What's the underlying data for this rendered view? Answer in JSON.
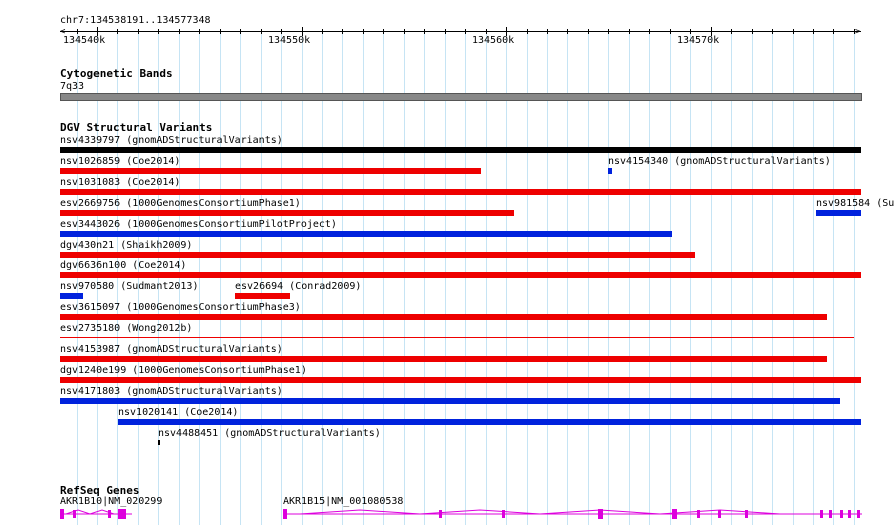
{
  "colors": {
    "grid": "#c6e4f4",
    "deletion": "#ee0000",
    "duplication": "#0022dd",
    "neutral": "#000000",
    "gene": "#dd00dd",
    "band": "#888888"
  },
  "ruler": {
    "location": "chr7:134538191..134577348",
    "start": 134538191,
    "end": 134577348,
    "major_ticks": [
      {
        "pos": 134540000,
        "label": "134540k"
      },
      {
        "pos": 134550000,
        "label": "134550k"
      },
      {
        "pos": 134560000,
        "label": "134560k"
      },
      {
        "pos": 134570000,
        "label": "134570k"
      }
    ]
  },
  "cytoband": {
    "title": "Cytogenetic Bands",
    "band_label": "7q33"
  },
  "dgv": {
    "title": "DGV Structural Variants",
    "features": [
      {
        "id": "nsv4339797",
        "label": "nsv4339797 (gnomADStructuralVariants)",
        "start": 134538191,
        "end": 134577348,
        "type": "neutral"
      },
      {
        "id": "nsv1026859",
        "label": "nsv1026859 (Coe2014)",
        "start": 134538191,
        "end": 134558750,
        "type": "deletion"
      },
      {
        "id": "nsv4154340",
        "label": "nsv4154340 (gnomADStructuralVariants)",
        "start": 134565000,
        "end": 134565200,
        "type": "duplication"
      },
      {
        "id": "nsv1031083",
        "label": "nsv1031083 (Coe2014)",
        "start": 134538191,
        "end": 134577348,
        "type": "deletion"
      },
      {
        "id": "esv2669756",
        "label": "esv2669756 (1000GenomesConsortiumPhase1)",
        "start": 134538191,
        "end": 134560400,
        "type": "deletion"
      },
      {
        "id": "nsv981584",
        "label": "nsv981584 (Su",
        "start": 134575150,
        "end": 134577348,
        "type": "duplication"
      },
      {
        "id": "esv3443026",
        "label": "esv3443026 (1000GenomesConsortiumPilotProject)",
        "start": 134538191,
        "end": 134568100,
        "type": "duplication"
      },
      {
        "id": "dgv430n21",
        "label": "dgv430n21 (Shaikh2009)",
        "start": 134538191,
        "end": 134569250,
        "type": "deletion"
      },
      {
        "id": "dgv6636n100",
        "label": "dgv6636n100 (Coe2014)",
        "start": 134538191,
        "end": 134577348,
        "type": "deletion"
      },
      {
        "id": "nsv970580",
        "label": "nsv970580 (Sudmant2013)",
        "start": 134538191,
        "end": 134539300,
        "type": "duplication"
      },
      {
        "id": "esv26694",
        "label": "esv26694 (Conrad2009)",
        "start": 134546750,
        "end": 134549450,
        "type": "deletion"
      },
      {
        "id": "esv3615097",
        "label": "esv3615097 (1000GenomesConsortiumPhase3)",
        "start": 134538191,
        "end": 134575700,
        "type": "deletion"
      },
      {
        "id": "esv2735180",
        "label": "esv2735180 (Wong2012b)",
        "start": 134538191,
        "end": 134577000,
        "type": "deletion-thin"
      },
      {
        "id": "nsv4153987",
        "label": "nsv4153987 (gnomADStructuralVariants)",
        "start": 134538191,
        "end": 134575700,
        "type": "deletion"
      },
      {
        "id": "dgv1240e199",
        "label": "dgv1240e199 (1000GenomesConsortiumPhase1)",
        "start": 134538191,
        "end": 134577348,
        "type": "deletion"
      },
      {
        "id": "nsv4171803",
        "label": "nsv4171803 (gnomADStructuralVariants)",
        "start": 134538191,
        "end": 134576300,
        "type": "duplication"
      },
      {
        "id": "nsv1020141",
        "label": "nsv1020141 (Coe2014)",
        "start": 134541050,
        "end": 134577348,
        "type": "duplication"
      },
      {
        "id": "nsv4488451",
        "label": "nsv4488451 (gnomADStructuralVariants)",
        "start": 134543000,
        "end": 134543050,
        "type": "neutral-tick"
      }
    ]
  },
  "refseq": {
    "title": "RefSeq Genes",
    "genes": [
      {
        "id": "AKR1B10",
        "label": "AKR1B10|NM_020299"
      },
      {
        "id": "AKR1B15",
        "label": "AKR1B15|NM_001080538"
      }
    ]
  }
}
